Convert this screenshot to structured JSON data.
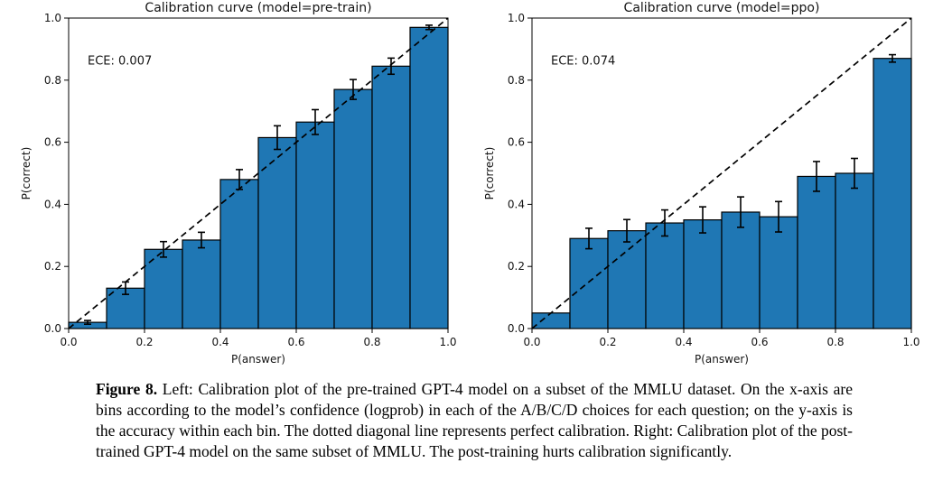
{
  "figure": {
    "caption_label": "Figure 8.",
    "caption_text": "Left: Calibration plot of the pre-trained GPT-4 model on a subset of the MMLU dataset. On the x-axis are bins according to the model’s confidence (logprob) in each of the A/B/C/D choices for each question; on the y-axis is the accuracy within each bin. The dotted diagonal line represents perfect calibration. Right: Calibration plot of the post-trained GPT-4 model on the same subset of MMLU. The post-training hurts calibration significantly."
  },
  "chart_data": [
    {
      "type": "bar",
      "title": "Calibration curve (model=pre-train)",
      "annotation": "ECE: 0.007",
      "xlabel": "P(answer)",
      "ylabel": "P(correct)",
      "xlim": [
        0.0,
        1.0
      ],
      "ylim": [
        0.0,
        1.0
      ],
      "xticks": [
        "0.0",
        "0.2",
        "0.4",
        "0.6",
        "0.8",
        "1.0"
      ],
      "yticks": [
        "0.0",
        "0.2",
        "0.4",
        "0.6",
        "0.8",
        "1.0"
      ],
      "bin_edges": [
        0.0,
        0.1,
        0.2,
        0.3,
        0.4,
        0.5,
        0.6,
        0.7,
        0.8,
        0.9,
        1.0
      ],
      "values": [
        0.02,
        0.13,
        0.255,
        0.285,
        0.48,
        0.615,
        0.665,
        0.77,
        0.845,
        0.97
      ],
      "errors": [
        0.006,
        0.02,
        0.025,
        0.025,
        0.032,
        0.038,
        0.04,
        0.032,
        0.026,
        0.007
      ],
      "diagonal": {
        "from": [
          0,
          0
        ],
        "to": [
          1,
          1
        ],
        "style": "dashed",
        "meaning": "perfect calibration"
      },
      "grid": false,
      "legend": null,
      "bar_color": "#1f77b4",
      "bar_edge_color": "#000000",
      "errorbar_color": "#000000"
    },
    {
      "type": "bar",
      "title": "Calibration curve (model=ppo)",
      "annotation": "ECE: 0.074",
      "xlabel": "P(answer)",
      "ylabel": "P(correct)",
      "xlim": [
        0.0,
        1.0
      ],
      "ylim": [
        0.0,
        1.0
      ],
      "xticks": [
        "0.0",
        "0.2",
        "0.4",
        "0.6",
        "0.8",
        "1.0"
      ],
      "yticks": [
        "0.0",
        "0.2",
        "0.4",
        "0.6",
        "0.8",
        "1.0"
      ],
      "bin_edges": [
        0.0,
        0.1,
        0.2,
        0.3,
        0.4,
        0.5,
        0.6,
        0.7,
        0.8,
        0.9,
        1.0
      ],
      "values": [
        0.05,
        0.29,
        0.315,
        0.34,
        0.35,
        0.375,
        0.36,
        0.49,
        0.5,
        0.87
      ],
      "errors": [
        0,
        0.033,
        0.036,
        0.042,
        0.042,
        0.049,
        0.049,
        0.048,
        0.048,
        0.012
      ],
      "diagonal": {
        "from": [
          0,
          0
        ],
        "to": [
          1,
          1
        ],
        "style": "dashed",
        "meaning": "perfect calibration"
      },
      "grid": false,
      "legend": null,
      "bar_color": "#1f77b4",
      "bar_edge_color": "#000000",
      "errorbar_color": "#000000"
    }
  ]
}
